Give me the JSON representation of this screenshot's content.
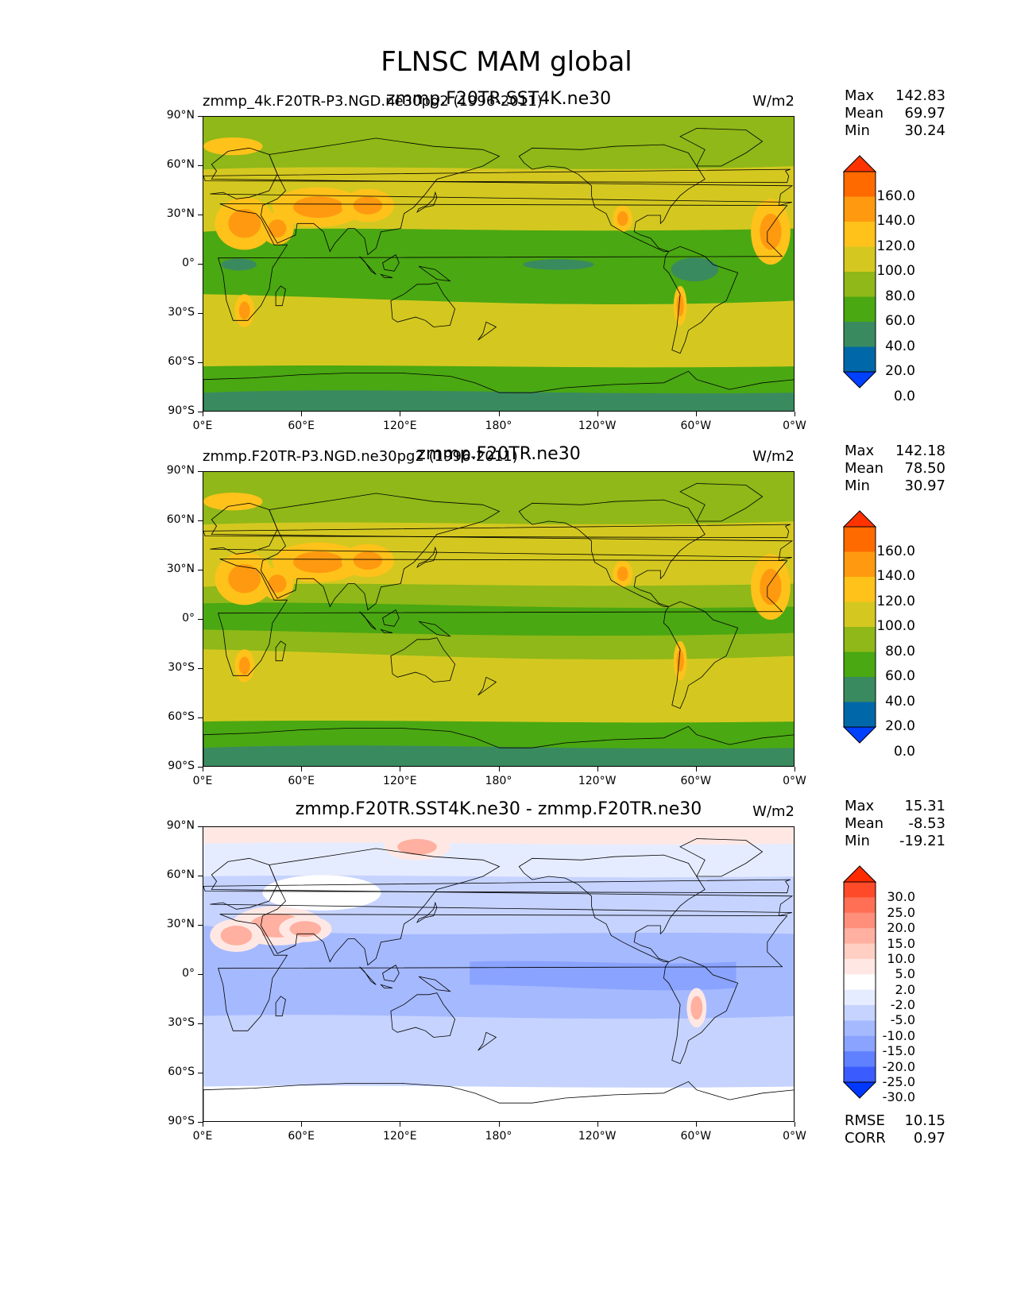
{
  "figure": {
    "title": "FLNSC MAM global"
  },
  "axes": {
    "lat_ticks": [
      "90°N",
      "60°N",
      "30°N",
      "0°",
      "30°S",
      "60°S",
      "90°S"
    ],
    "lon_ticks": [
      "0°E",
      "60°E",
      "120°E",
      "180°",
      "120°W",
      "60°W",
      "0°W"
    ]
  },
  "chart_data": [
    {
      "type": "heatmap",
      "left_title": "zmmp_4k.F20TR-P3.NGD.ne30pg2 (1996-2011)",
      "center_title": "zmmp.F20TR.SST4K.ne30",
      "units": "W/m2",
      "stats": {
        "max_label": "Max",
        "max": "142.83",
        "mean_label": "Mean",
        "mean": "69.97",
        "min_label": "Min",
        "min": "30.24"
      },
      "colorbar": {
        "levels": [
          "160.0",
          "140.0",
          "120.0",
          "100.0",
          "80.0",
          "60.0",
          "40.0",
          "20.0",
          "0.0"
        ],
        "colors": [
          "#ff3300",
          "#ff6a00",
          "#ff9a10",
          "#ffc21a",
          "#d4c820",
          "#8fb818",
          "#4aa812",
          "#3a8a60",
          "#0068a8",
          "#0040ff"
        ]
      }
    },
    {
      "type": "heatmap",
      "left_title": "zmmp.F20TR-P3.NGD.ne30pg2 (1996-2011)",
      "center_title": "zmmp.F20TR.ne30",
      "units": "W/m2",
      "stats": {
        "max_label": "Max",
        "max": "142.18",
        "mean_label": "Mean",
        "mean": "78.50",
        "min_label": "Min",
        "min": "30.97"
      },
      "colorbar": {
        "levels": [
          "160.0",
          "140.0",
          "120.0",
          "100.0",
          "80.0",
          "60.0",
          "40.0",
          "20.0",
          "0.0"
        ],
        "colors": [
          "#ff3300",
          "#ff6a00",
          "#ff9a10",
          "#ffc21a",
          "#d4c820",
          "#8fb818",
          "#4aa812",
          "#3a8a60",
          "#0068a8",
          "#0040ff"
        ]
      }
    },
    {
      "type": "heatmap",
      "left_title": "",
      "center_title": "zmmp.F20TR.SST4K.ne30 - zmmp.F20TR.ne30",
      "units": "W/m2",
      "stats": {
        "max_label": "Max",
        "max": "15.31",
        "mean_label": "Mean",
        "mean": "-8.53",
        "min_label": "Min",
        "min": "-19.21"
      },
      "colorbar": {
        "levels": [
          "30.0",
          "25.0",
          "20.0",
          "15.0",
          "10.0",
          "5.0",
          "2.0",
          "-2.0",
          "-5.0",
          "-10.0",
          "-15.0",
          "-20.0",
          "-25.0",
          "-30.0"
        ],
        "colors": [
          "#ff2a00",
          "#ff4a2a",
          "#ff6f55",
          "#ff8f7a",
          "#ffb0a0",
          "#ffcfc4",
          "#ffe8e4",
          "#ffffff",
          "#e6ecff",
          "#c6d3ff",
          "#a5b9ff",
          "#8aa3ff",
          "#5f80ff",
          "#3a5cff",
          "#0038ff"
        ]
      },
      "metrics": {
        "rmse_label": "RMSE",
        "rmse": "10.15",
        "corr_label": "CORR",
        "corr": "0.97"
      }
    }
  ]
}
